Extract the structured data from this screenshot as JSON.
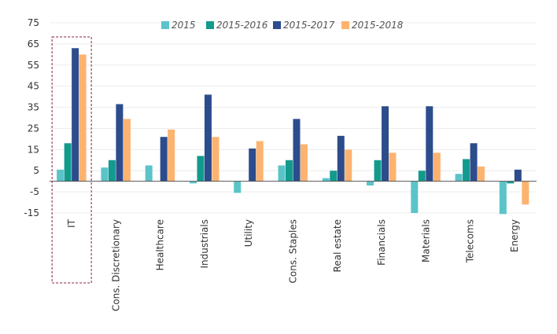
{
  "chart_data": {
    "type": "bar",
    "categories": [
      "IT",
      "Cons. Discretionary",
      "Healthcare",
      "Industrials",
      "Utility",
      "Cons. Staples",
      "Real estate",
      "Financials",
      "Materials",
      "Telecoms",
      "Energy"
    ],
    "series": [
      {
        "name": "2015",
        "color": "#5bc4c9",
        "values": [
          5.5,
          6.5,
          7.5,
          -1,
          -5.5,
          7.5,
          1.5,
          -2,
          -15,
          3.5,
          -15.5
        ]
      },
      {
        "name": "2015-2016",
        "color": "#129a8d",
        "values": [
          18,
          10,
          0,
          12,
          0,
          10,
          5,
          10,
          5,
          10.5,
          -1
        ]
      },
      {
        "name": "2015-2017",
        "color": "#2c4c8c",
        "values": [
          63,
          36.5,
          21,
          41,
          15.5,
          29.5,
          21.5,
          35.5,
          35.5,
          18,
          5.5
        ]
      },
      {
        "name": "2015-2018",
        "color": "#fdb370",
        "values": [
          60,
          29.5,
          24.5,
          21,
          19,
          17.5,
          15,
          13.5,
          13.5,
          7,
          -11
        ]
      }
    ],
    "yticks": [
      75,
      65,
      55,
      45,
      35,
      25,
      15,
      5,
      -5,
      -15
    ],
    "ylim": [
      -15,
      75
    ],
    "highlight_category": "IT",
    "highlight_color": "#8b1a4a",
    "legend_position": "top",
    "grid": true,
    "title": "",
    "xlabel": "",
    "ylabel": ""
  }
}
